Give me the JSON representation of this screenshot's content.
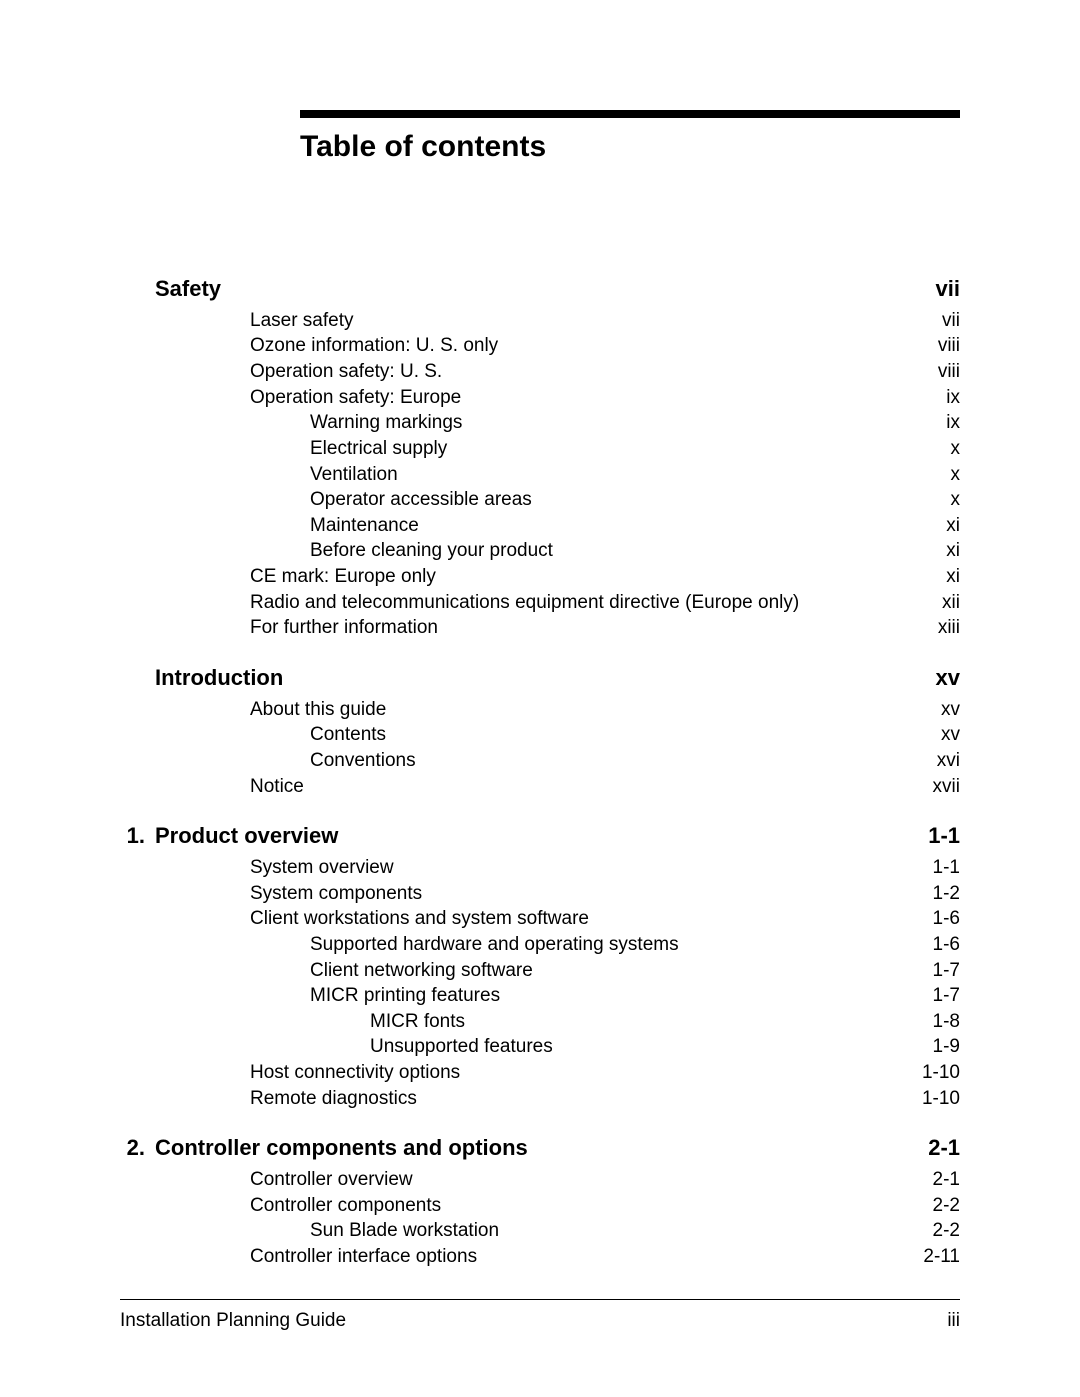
{
  "title": "Table of contents",
  "sections": [
    {
      "num": "",
      "title": "Safety",
      "page": "vii",
      "entries": [
        {
          "label": "Laser safety",
          "page": "vii",
          "indent": 1
        },
        {
          "label": "Ozone information: U. S. only",
          "page": "viii",
          "indent": 1
        },
        {
          "label": "Operation safety: U. S.",
          "page": "viii",
          "indent": 1
        },
        {
          "label": "Operation safety: Europe",
          "page": "ix",
          "indent": 1
        },
        {
          "label": "Warning markings",
          "page": "ix",
          "indent": 2
        },
        {
          "label": "Electrical supply",
          "page": "x",
          "indent": 2
        },
        {
          "label": "Ventilation",
          "page": "x",
          "indent": 2
        },
        {
          "label": "Operator accessible areas",
          "page": "x",
          "indent": 2
        },
        {
          "label": "Maintenance",
          "page": "xi",
          "indent": 2
        },
        {
          "label": "Before cleaning your product",
          "page": "xi",
          "indent": 2
        },
        {
          "label": "CE mark: Europe only",
          "page": "xi",
          "indent": 1
        },
        {
          "label": "Radio and telecommunications equipment directive (Europe only)",
          "page": "xii",
          "indent": 1
        },
        {
          "label": "For further information",
          "page": "xiii",
          "indent": 1
        }
      ]
    },
    {
      "num": "",
      "title": "Introduction",
      "page": "xv",
      "entries": [
        {
          "label": "About this guide",
          "page": "xv",
          "indent": 1
        },
        {
          "label": "Contents",
          "page": "xv",
          "indent": 2
        },
        {
          "label": "Conventions",
          "page": "xvi",
          "indent": 2
        },
        {
          "label": "Notice",
          "page": "xvii",
          "indent": 1
        }
      ]
    },
    {
      "num": "1.",
      "title": "Product overview",
      "page": "1-1",
      "entries": [
        {
          "label": "System overview",
          "page": "1-1",
          "indent": 1
        },
        {
          "label": "System components",
          "page": "1-2",
          "indent": 1
        },
        {
          "label": "Client workstations and system software",
          "page": "1-6",
          "indent": 1
        },
        {
          "label": "Supported hardware and operating systems",
          "page": "1-6",
          "indent": 2
        },
        {
          "label": "Client networking software",
          "page": "1-7",
          "indent": 2
        },
        {
          "label": "MICR printing features",
          "page": "1-7",
          "indent": 2
        },
        {
          "label": "MICR fonts",
          "page": "1-8",
          "indent": 3
        },
        {
          "label": "Unsupported features",
          "page": "1-9",
          "indent": 3
        },
        {
          "label": "Host connectivity options",
          "page": "1-10",
          "indent": 1
        },
        {
          "label": "Remote diagnostics",
          "page": "1-10",
          "indent": 1
        }
      ]
    },
    {
      "num": "2.",
      "title": "Controller components and options",
      "page": "2-1",
      "entries": [
        {
          "label": "Controller overview",
          "page": "2-1",
          "indent": 1
        },
        {
          "label": "Controller components",
          "page": "2-2",
          "indent": 1
        },
        {
          "label": "Sun Blade workstation",
          "page": "2-2",
          "indent": 2
        },
        {
          "label": "Controller interface options",
          "page": "2-11",
          "indent": 1
        }
      ]
    }
  ],
  "footer": {
    "left": "Installation Planning Guide",
    "right": "iii"
  },
  "style": {
    "rule_color": "#000000",
    "background_color": "#ffffff",
    "title_fontsize_pt": 22,
    "section_head_fontsize_pt": 16,
    "body_fontsize_pt": 14,
    "font_family": "Arial, Helvetica, sans-serif"
  }
}
